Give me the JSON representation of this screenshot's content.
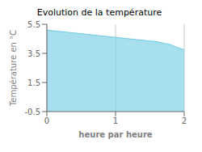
{
  "chart_data": {
    "type": "area",
    "title": "Evolution de la température",
    "x_label": "heure par heure",
    "y_label": "Température en °C",
    "x": [
      0,
      0.1,
      0.2,
      0.3,
      0.4,
      0.5,
      0.6,
      0.7,
      0.8,
      0.9,
      1.0,
      1.1,
      1.2,
      1.3,
      1.4,
      1.5,
      1.6,
      1.7,
      1.8,
      1.9,
      2.0
    ],
    "values": [
      5.1,
      5.05,
      5.0,
      4.95,
      4.9,
      4.85,
      4.8,
      4.75,
      4.7,
      4.65,
      4.6,
      4.55,
      4.5,
      4.45,
      4.4,
      4.35,
      4.3,
      4.2,
      4.1,
      3.9,
      3.75
    ],
    "color": "#6ecae3",
    "xlim": [
      0,
      2
    ],
    "ylim": [
      -0.5,
      5.5
    ],
    "xticks": [
      0,
      1,
      2
    ],
    "yticks": [
      -0.5,
      1.5,
      3.5,
      5.5
    ],
    "grid": "x"
  }
}
